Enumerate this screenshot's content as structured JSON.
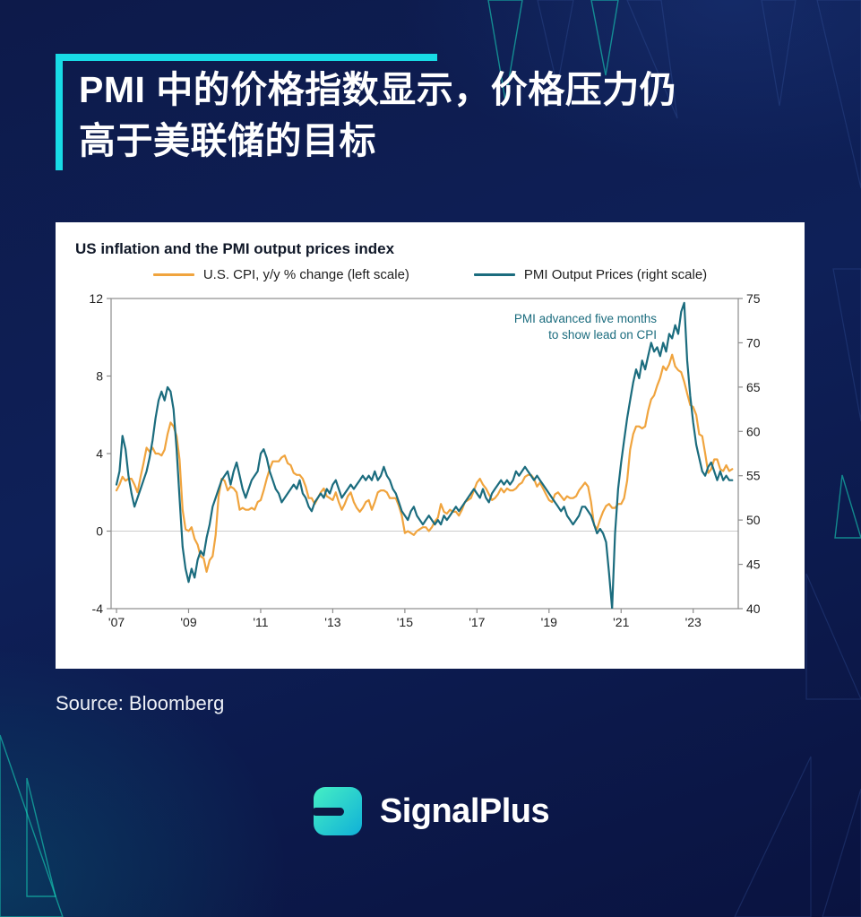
{
  "header": {
    "title_line1": "PMI 中的价格指数显示，价格压力仍",
    "title_line2": "高于美联储的目标",
    "accent_color": "#18dbe6"
  },
  "footer": {
    "source": "Source: Bloomberg",
    "brand": "SignalPlus",
    "logo_gradient": [
      "#45efc4",
      "#10b0d8"
    ]
  },
  "chart_data": {
    "type": "line",
    "title": "US inflation and the PMI output prices index",
    "legend": [
      {
        "label": "U.S. CPI, y/y % change (left scale)",
        "color": "#f0a43e"
      },
      {
        "label": "PMI Output Prices (right scale)",
        "color": "#1b6c7e"
      }
    ],
    "annotation": {
      "lines": [
        "PMI advanced five months",
        "to show lead on CPI"
      ],
      "color": "#1b6c7e"
    },
    "grid": "zero-line-only",
    "legend_position": "top",
    "x_axis": {
      "range": [
        2006.85,
        2024.25
      ],
      "ticks": [
        2007,
        2009,
        2011,
        2013,
        2015,
        2017,
        2019,
        2021,
        2023
      ],
      "tick_labels": [
        "'07",
        "'09",
        "'11",
        "'13",
        "'15",
        "'17",
        "'19",
        "'21",
        "'23"
      ]
    },
    "y_left": {
      "range": [
        -4,
        12
      ],
      "ticks": [
        -4,
        0,
        4,
        8,
        12
      ]
    },
    "y_right": {
      "range": [
        40,
        75
      ],
      "ticks": [
        40,
        45,
        50,
        55,
        60,
        65,
        70,
        75
      ]
    },
    "series": [
      {
        "name": "us-cpi-line",
        "axis": "left",
        "color": "#f0a43e",
        "start_year": 2007,
        "interval_months": 1,
        "values": [
          2.1,
          2.4,
          2.8,
          2.6,
          2.7,
          2.7,
          2.4,
          2.0,
          2.8,
          3.5,
          4.3,
          4.1,
          4.3,
          4.0,
          4.0,
          3.9,
          4.2,
          5.0,
          5.6,
          5.4,
          4.9,
          3.7,
          1.1,
          0.1,
          0.0,
          0.2,
          -0.4,
          -0.7,
          -1.3,
          -1.4,
          -2.1,
          -1.5,
          -1.3,
          -0.2,
          1.8,
          2.7,
          2.6,
          2.1,
          2.3,
          2.2,
          2.0,
          1.1,
          1.2,
          1.1,
          1.1,
          1.2,
          1.1,
          1.5,
          1.6,
          2.1,
          2.7,
          3.2,
          3.6,
          3.6,
          3.6,
          3.8,
          3.9,
          3.5,
          3.4,
          3.0,
          2.9,
          2.9,
          2.7,
          2.3,
          1.7,
          1.7,
          1.4,
          1.7,
          2.0,
          2.2,
          1.8,
          1.7,
          1.6,
          2.0,
          1.5,
          1.1,
          1.4,
          1.8,
          2.0,
          1.5,
          1.2,
          1.0,
          1.2,
          1.5,
          1.6,
          1.1,
          1.5,
          2.0,
          2.1,
          2.1,
          2.0,
          1.7,
          1.7,
          1.7,
          1.3,
          0.8,
          -0.1,
          0.0,
          -0.1,
          -0.2,
          0.0,
          0.1,
          0.2,
          0.2,
          0.0,
          0.2,
          0.5,
          0.7,
          1.4,
          1.0,
          0.9,
          1.1,
          1.0,
          1.0,
          0.8,
          1.1,
          1.5,
          1.6,
          1.7,
          2.1,
          2.5,
          2.7,
          2.4,
          2.2,
          1.9,
          1.6,
          1.7,
          1.9,
          2.2,
          2.0,
          2.2,
          2.1,
          2.1,
          2.2,
          2.4,
          2.5,
          2.8,
          2.9,
          2.9,
          2.7,
          2.3,
          2.5,
          2.2,
          1.9,
          1.6,
          1.5,
          1.9,
          2.0,
          1.8,
          1.6,
          1.8,
          1.7,
          1.7,
          1.8,
          2.1,
          2.3,
          2.5,
          2.3,
          1.5,
          0.3,
          0.1,
          0.6,
          1.0,
          1.3,
          1.4,
          1.2,
          1.2,
          1.4,
          1.4,
          1.7,
          2.6,
          4.2,
          5.0,
          5.4,
          5.4,
          5.3,
          5.4,
          6.2,
          6.8,
          7.0,
          7.5,
          7.9,
          8.5,
          8.3,
          8.6,
          9.1,
          8.5,
          8.3,
          8.2,
          7.7,
          7.1,
          6.5,
          6.4,
          6.0,
          5.0,
          4.9,
          4.0,
          3.0,
          3.2,
          3.7,
          3.7,
          3.2,
          3.1,
          3.4,
          3.1,
          3.2
        ]
      },
      {
        "name": "pmi-output-prices-line",
        "axis": "right",
        "color": "#1b6c7e",
        "start_year": 2007,
        "interval_months": 1,
        "values": [
          54.0,
          55.5,
          59.5,
          58.0,
          55.0,
          53.0,
          51.5,
          52.5,
          53.5,
          54.5,
          55.5,
          57.0,
          59.0,
          61.5,
          63.5,
          64.5,
          63.5,
          65.0,
          64.5,
          62.5,
          58.0,
          52.5,
          47.0,
          44.5,
          43.0,
          44.5,
          43.5,
          45.5,
          46.5,
          46.0,
          48.0,
          49.5,
          51.5,
          52.5,
          53.5,
          54.5,
          55.0,
          55.5,
          54.0,
          55.5,
          56.5,
          55.0,
          53.5,
          52.5,
          53.5,
          54.5,
          55.0,
          55.5,
          57.5,
          58.0,
          57.0,
          55.5,
          54.5,
          53.5,
          53.0,
          52.0,
          52.5,
          53.0,
          53.5,
          54.0,
          53.5,
          54.5,
          53.0,
          52.5,
          51.5,
          51.0,
          52.0,
          52.5,
          53.0,
          52.5,
          53.5,
          53.0,
          54.0,
          54.5,
          53.5,
          52.5,
          53.0,
          53.5,
          54.0,
          53.5,
          54.0,
          54.5,
          55.0,
          54.5,
          55.0,
          54.5,
          55.5,
          54.5,
          55.0,
          56.0,
          55.0,
          54.5,
          53.5,
          53.0,
          52.0,
          51.0,
          50.5,
          50.0,
          51.0,
          51.5,
          50.5,
          50.0,
          49.5,
          50.0,
          50.5,
          50.0,
          49.5,
          50.0,
          49.5,
          50.5,
          50.0,
          50.5,
          51.0,
          51.5,
          51.0,
          51.5,
          52.0,
          52.5,
          53.0,
          53.5,
          53.0,
          52.5,
          53.5,
          52.5,
          52.0,
          53.0,
          53.5,
          54.0,
          54.5,
          54.0,
          54.5,
          54.0,
          54.5,
          55.5,
          55.0,
          55.5,
          56.0,
          55.5,
          55.0,
          54.5,
          55.0,
          54.5,
          54.0,
          53.5,
          53.0,
          52.5,
          52.0,
          51.5,
          51.0,
          51.5,
          50.5,
          50.0,
          49.5,
          50.0,
          50.5,
          51.5,
          51.5,
          51.0,
          50.5,
          49.5,
          48.5,
          49.0,
          48.5,
          47.5,
          44.0,
          40.0,
          48.5,
          53.5,
          56.5,
          59.0,
          61.5,
          63.5,
          65.5,
          67.0,
          66.0,
          68.0,
          67.0,
          68.5,
          70.0,
          69.0,
          69.5,
          68.5,
          70.0,
          69.0,
          71.0,
          70.5,
          72.0,
          71.0,
          73.5,
          74.5,
          68.0,
          64.0,
          61.0,
          58.5,
          57.0,
          55.5,
          55.0,
          56.0,
          56.5,
          55.5,
          54.5,
          55.5,
          54.5,
          55.0,
          54.5,
          54.5
        ]
      }
    ]
  }
}
